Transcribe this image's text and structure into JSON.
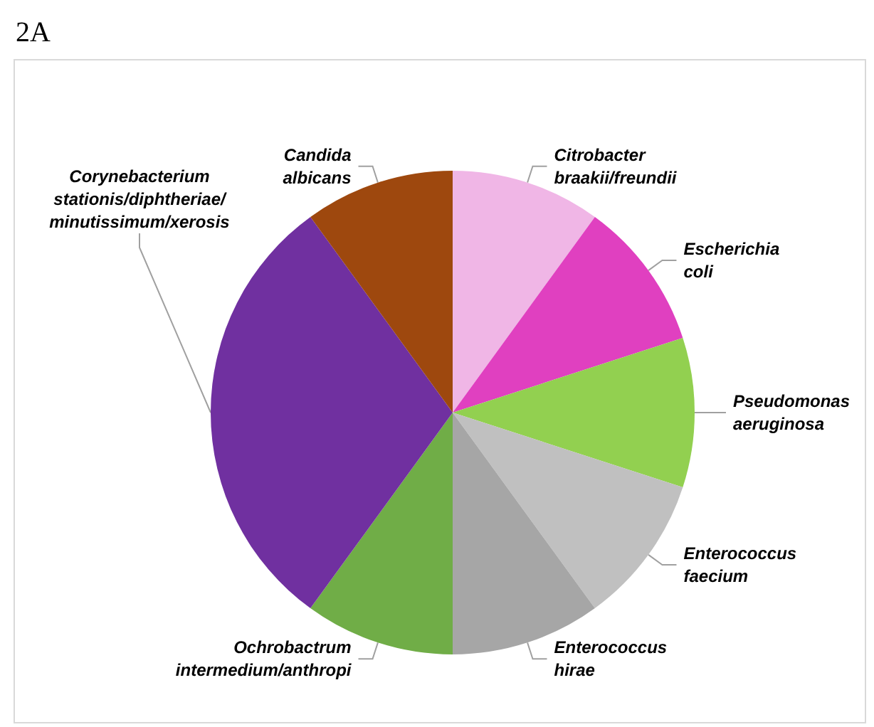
{
  "chart_data": {
    "type": "pie",
    "title": "2A",
    "categories": [
      "Citrobacter\nbraakii/freundii",
      "Escherichia\ncoli",
      "Pseudomonas\naeruginosa",
      "Enterococcus\nfaecium",
      "Enterococcus\nhirae",
      "Ochrobactrum\nintermedium/anthropi",
      "Corynebacterium\nstationis/diphtheriae/\nminutissimum/xerosis",
      "Candida\nalbicans"
    ],
    "values": [
      10,
      10,
      10,
      10,
      10,
      10,
      30,
      10
    ],
    "colors": [
      "#f0b6e6",
      "#e040c0",
      "#92d050",
      "#c0c0c0",
      "#a6a6a6",
      "#70ad47",
      "#7030a0",
      "#9e480e"
    ],
    "legend": false
  }
}
